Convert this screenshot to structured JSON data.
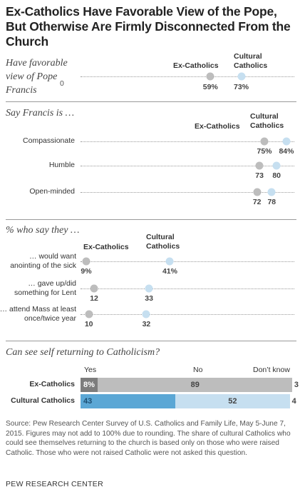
{
  "title": "Ex-Catholics Have Favorable View of the Pope, But Otherwise Are Firmly Disconnected From the Church",
  "colors": {
    "ex_catholics": "#bdbdbd",
    "cultural_catholics": "#c6dff0",
    "bar_ex_yes": "#7d7d7d",
    "bar_ex_no": "#bdbdbd",
    "bar_cult_yes": "#5ba7d5",
    "bar_cult_no": "#c6dff0"
  },
  "section1": {
    "label_lines": [
      "Have favorable",
      "view of Pope",
      "Francis"
    ],
    "zero_label": "0",
    "series_ex": "Ex-Catholics",
    "series_cult_lines": [
      "Cultural",
      "Catholics"
    ],
    "ex_value_label": "59%",
    "cult_value_label": "73%"
  },
  "section2": {
    "label": "Say Francis is …",
    "series_ex": "Ex-Catholics",
    "series_cult_lines": [
      "Cultural",
      "Catholics"
    ],
    "rows": [
      {
        "label": "Compassionate",
        "ex_label": "75%",
        "cult_label": "84%"
      },
      {
        "label": "Humble",
        "ex_label": "73",
        "cult_label": "80"
      },
      {
        "label": "Open-minded",
        "ex_label": "72",
        "cult_label": "78"
      }
    ]
  },
  "section3": {
    "label": "% who say they …",
    "series_ex": "Ex-Catholics",
    "series_cult_lines": [
      "Cultural",
      "Catholics"
    ],
    "rows": [
      {
        "label_lines": [
          "… would want",
          "anointing of the sick"
        ],
        "ex_label": "9%",
        "cult_label": "41%"
      },
      {
        "label_lines": [
          "… gave up/did",
          "something for Lent"
        ],
        "ex_label": "12",
        "cult_label": "33"
      },
      {
        "label_lines": [
          "… attend Mass at least",
          "once/twice year"
        ],
        "ex_label": "10",
        "cult_label": "32"
      }
    ]
  },
  "section4": {
    "label": "Can see self returning to Catholicism?",
    "head_yes": "Yes",
    "head_no": "No",
    "head_dk": "Don’t know",
    "rows": [
      {
        "label": "Ex-Catholics",
        "yes_label": "8%",
        "no_label": "89",
        "dk_label": "3"
      },
      {
        "label": "Cultural Catholics",
        "yes_label": "43",
        "no_label": "52",
        "dk_label": "4"
      }
    ]
  },
  "source": "Source: Pew Research Center Survey of U.S. Catholics and Family Life, May 5-June 7, 2015. Figures may not add to 100% due to rounding. The share of cultural Catholics who could see themselves returning to the church is based only on those who were raised Catholic. Those who were not raised Catholic were not asked this question.",
  "credit": "PEW RESEARCH CENTER",
  "chart_data": [
    {
      "type": "scatter",
      "title": "Have favorable view of Pope Francis",
      "series": [
        {
          "name": "Ex-Catholics",
          "values": [
            59
          ]
        },
        {
          "name": "Cultural Catholics",
          "values": [
            73
          ]
        }
      ]
    },
    {
      "type": "scatter",
      "title": "Say Francis is …",
      "categories": [
        "Compassionate",
        "Humble",
        "Open-minded"
      ],
      "series": [
        {
          "name": "Ex-Catholics",
          "values": [
            75,
            73,
            72
          ]
        },
        {
          "name": "Cultural Catholics",
          "values": [
            84,
            80,
            78
          ]
        }
      ]
    },
    {
      "type": "scatter",
      "title": "% who say they …",
      "categories": [
        "… would want anointing of the sick",
        "… gave up/did something for Lent",
        "… attend Mass at least once/twice year"
      ],
      "series": [
        {
          "name": "Ex-Catholics",
          "values": [
            9,
            12,
            10
          ]
        },
        {
          "name": "Cultural Catholics",
          "values": [
            41,
            33,
            32
          ]
        }
      ]
    },
    {
      "type": "bar",
      "title": "Can see self returning to Catholicism?",
      "categories": [
        "Ex-Catholics",
        "Cultural Catholics"
      ],
      "series": [
        {
          "name": "Yes",
          "values": [
            8,
            43
          ]
        },
        {
          "name": "No",
          "values": [
            89,
            52
          ]
        },
        {
          "name": "Don’t know",
          "values": [
            3,
            4
          ]
        }
      ]
    }
  ]
}
